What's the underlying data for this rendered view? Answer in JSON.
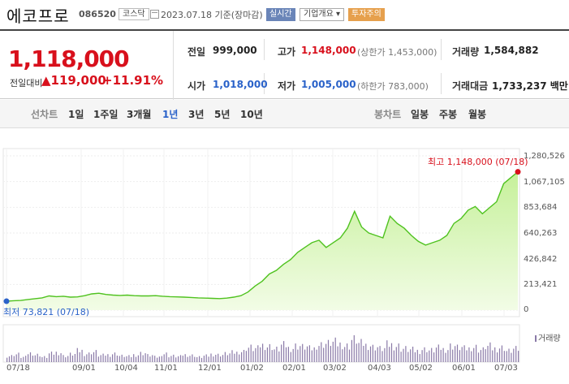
{
  "header": {
    "name": "에코프로",
    "code": "086520",
    "market": "코스닥",
    "date_text": "2023.07.18  기준(장마감)",
    "realtime_label": "실시간",
    "corp_label": "기업개요 ▾",
    "warning_label": "투자주의"
  },
  "price": {
    "current": "1,118,000",
    "change_label": "전일대비",
    "change_value": "▲119,000",
    "change_pct": "+11.91%"
  },
  "stats": {
    "prev_close_label": "전일",
    "prev_close": "999,000",
    "high_label": "고가",
    "high": "1,148,000",
    "upper_limit": "(상한가 1,453,000)",
    "volume_label": "거래량",
    "volume": "1,584,882",
    "open_label": "시가",
    "open": "1,018,000",
    "low_label": "저가",
    "low": "1,005,000",
    "lower_limit": "(하한가 783,000)",
    "value_label": "거래대금",
    "value": "1,733,237 백만"
  },
  "tabs": {
    "line_label": "선차트",
    "periods": [
      "1일",
      "1주일",
      "3개월",
      "1년",
      "3년",
      "5년",
      "10년"
    ],
    "selected": "1년",
    "candle_label": "봉차트",
    "candles": [
      "일봉",
      "주봉",
      "월봉"
    ]
  },
  "colors": {
    "up": "#d8101c",
    "down": "#2a62c9",
    "line": "#4fc21f",
    "fill_top": "#c6f09a",
    "volume": "#8a7aa8"
  },
  "chart_data": {
    "type": "area",
    "yticks": [
      "1,280,526",
      "1,067,105",
      "853,684",
      "640,263",
      "426,842",
      "213,421",
      "0"
    ],
    "ylim": [
      0,
      1280526
    ],
    "xticks": [
      "07/18",
      "09/01",
      "10/04",
      "11/01",
      "12/01",
      "01/02",
      "02/01",
      "03/02",
      "04/03",
      "05/02",
      "06/01",
      "07/03"
    ],
    "high_annotation": "최고 1,148,000 (07/18)",
    "low_annotation": "최저 73,821 (07/18)",
    "volume_label": "거래량",
    "series": [
      {
        "values": [
          73821,
          78000,
          80000,
          88000,
          95000,
          102000,
          118000,
          112000,
          115000,
          108000,
          110000,
          120000,
          135000,
          140000,
          130000,
          125000,
          122000,
          125000,
          120000,
          118000,
          118000,
          120000,
          115000,
          112000,
          110000,
          108000,
          105000,
          102000,
          100000,
          98000,
          96000,
          100000,
          108000,
          120000,
          150000,
          200000,
          240000,
          300000,
          330000,
          380000,
          420000,
          480000,
          520000,
          560000,
          580000,
          520000,
          560000,
          600000,
          680000,
          820000,
          690000,
          640000,
          620000,
          600000,
          780000,
          720000,
          680000,
          620000,
          570000,
          540000,
          560000,
          580000,
          620000,
          720000,
          760000,
          830000,
          860000,
          800000,
          850000,
          900000,
          1050000,
          1100000,
          1148000
        ]
      }
    ],
    "volume": [
      22,
      28,
      18,
      32,
      26,
      18,
      30,
      34,
      22,
      28,
      40,
      30,
      36,
      24,
      26,
      30,
      22,
      20,
      26,
      32,
      24,
      18,
      30,
      22,
      20,
      26,
      24,
      18,
      22,
      28,
      26,
      30,
      34,
      38,
      52,
      48,
      60,
      56,
      46,
      60,
      50,
      58,
      54,
      48,
      62,
      66,
      70,
      64,
      58,
      80,
      66,
      60,
      54,
      48,
      62,
      58,
      48,
      44,
      40,
      46,
      42,
      50,
      46,
      58,
      52,
      48,
      54,
      44,
      56,
      48,
      52,
      40,
      46
    ]
  }
}
